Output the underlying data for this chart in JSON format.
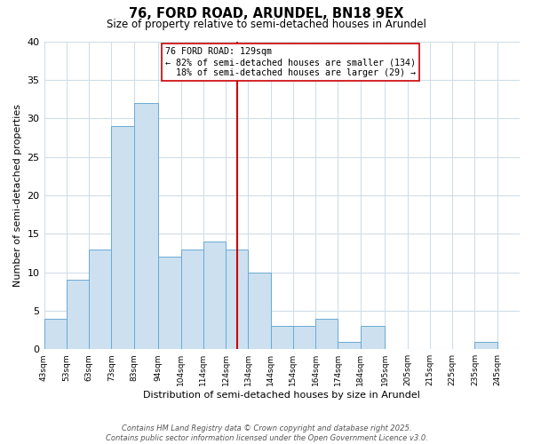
{
  "title": "76, FORD ROAD, ARUNDEL, BN18 9EX",
  "subtitle": "Size of property relative to semi-detached houses in Arundel",
  "xlabel": "Distribution of semi-detached houses by size in Arundel",
  "ylabel": "Number of semi-detached properties",
  "bin_labels": [
    "43sqm",
    "53sqm",
    "63sqm",
    "73sqm",
    "83sqm",
    "94sqm",
    "104sqm",
    "114sqm",
    "124sqm",
    "134sqm",
    "144sqm",
    "154sqm",
    "164sqm",
    "174sqm",
    "184sqm",
    "195sqm",
    "205sqm",
    "215sqm",
    "225sqm",
    "235sqm",
    "245sqm"
  ],
  "bin_edges": [
    43,
    53,
    63,
    73,
    83,
    94,
    104,
    114,
    124,
    134,
    144,
    154,
    164,
    174,
    184,
    195,
    205,
    215,
    225,
    235,
    245,
    255
  ],
  "counts": [
    4,
    9,
    13,
    29,
    32,
    12,
    13,
    14,
    13,
    10,
    3,
    3,
    4,
    1,
    3,
    0,
    0,
    0,
    0,
    1,
    0
  ],
  "property_value": 129,
  "pct_smaller": 82,
  "pct_smaller_n": 134,
  "pct_larger": 18,
  "pct_larger_n": 29,
  "bar_color": "#cce0f0",
  "bar_edge_color": "#6aaad4",
  "vline_color": "#cc0000",
  "annotation_box_color": "#ffffff",
  "annotation_box_edge": "#cc0000",
  "ylim": [
    0,
    40
  ],
  "xlim": [
    43,
    255
  ],
  "background_color": "#ffffff",
  "grid_color": "#d0dde8",
  "footer_line1": "Contains HM Land Registry data © Crown copyright and database right 2025.",
  "footer_line2": "Contains public sector information licensed under the Open Government Licence v3.0."
}
